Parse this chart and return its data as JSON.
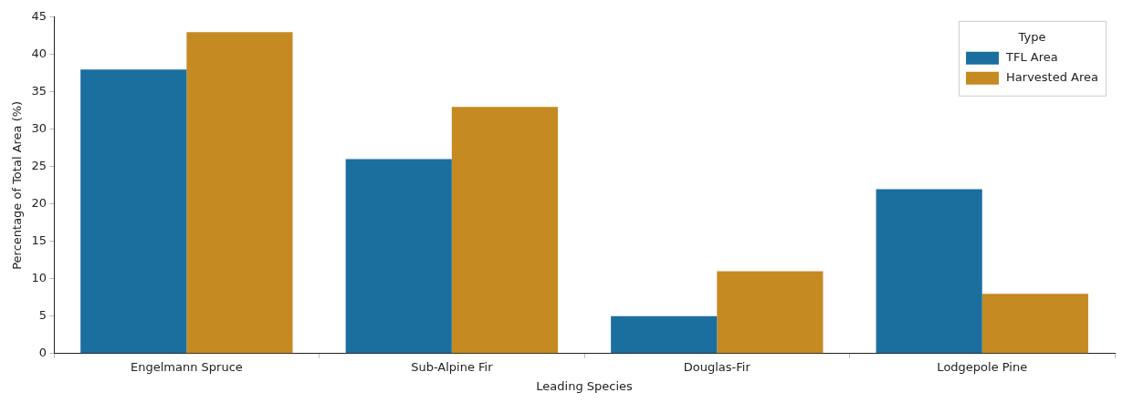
{
  "chart_data": {
    "type": "bar",
    "xlabel": "Leading Species",
    "ylabel": "Percentage of Total Area (%)",
    "legend_title": "Type",
    "categories": [
      "Engelmann Spruce",
      "Sub-Alpine Fir",
      "Douglas-Fir",
      "Lodgepole Pine"
    ],
    "series": [
      {
        "name": "TFL Area",
        "color": "#1b6f9f",
        "values": [
          38,
          26,
          5,
          22
        ]
      },
      {
        "name": "Harvested Area",
        "color": "#c58a22",
        "values": [
          43,
          33,
          11,
          8
        ]
      }
    ],
    "ylim": [
      0,
      45
    ],
    "yticks": [
      0,
      5,
      10,
      15,
      20,
      25,
      30,
      35,
      40,
      45
    ],
    "grid": false,
    "legend": "top right"
  }
}
